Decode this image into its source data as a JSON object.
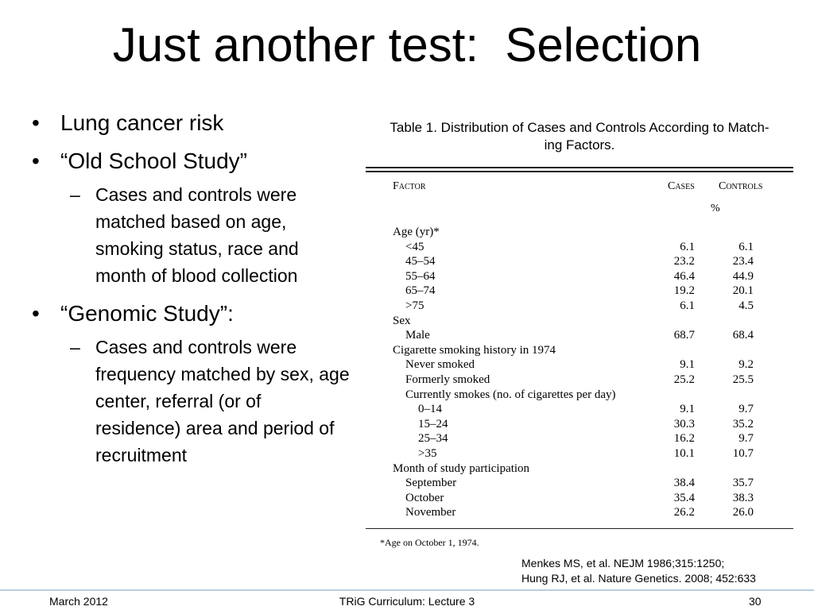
{
  "slide": {
    "title": "Just another test:  Selection",
    "bullets": [
      {
        "text": "Lung cancer risk",
        "subs": []
      },
      {
        "text": "“Old School Study”",
        "subs": [
          "Cases and controls were matched based on age, smoking status, race and month of blood collection"
        ]
      },
      {
        "text": "“Genomic Study”:",
        "subs": [
          "Cases and controls were frequency matched by sex, age center, referral (or of residence) area and period of recruitment"
        ]
      }
    ],
    "bullet_glyph": "•",
    "dash_glyph": "–",
    "citation": {
      "line1": "Menkes MS, et al. NEJM 1986;315:1250;",
      "line2": "Hung RJ, et al. Nature Genetics. 2008; 452:633"
    },
    "footer": {
      "left": "March 2012",
      "center": "TRiG Curriculum: Lecture 3",
      "right": "30"
    }
  },
  "table": {
    "caption_line1": "Table 1. Distribution of Cases and Controls According to Match-",
    "caption_line2": "ing Factors.",
    "headers": {
      "factor": "Factor",
      "cases": "Cases",
      "controls": "Controls"
    },
    "unit": "%",
    "rows": [
      {
        "label": "Age (yr)*",
        "indent": 0,
        "cases": "",
        "controls": ""
      },
      {
        "label": "<45",
        "indent": 1,
        "cases": "6.1",
        "controls": "6.1"
      },
      {
        "label": "45–54",
        "indent": 1,
        "cases": "23.2",
        "controls": "23.4"
      },
      {
        "label": "55–64",
        "indent": 1,
        "cases": "46.4",
        "controls": "44.9"
      },
      {
        "label": "65–74",
        "indent": 1,
        "cases": "19.2",
        "controls": "20.1"
      },
      {
        "label": ">75",
        "indent": 1,
        "cases": "6.1",
        "controls": "4.5"
      },
      {
        "label": "Sex",
        "indent": 0,
        "cases": "",
        "controls": ""
      },
      {
        "label": "Male",
        "indent": 1,
        "cases": "68.7",
        "controls": "68.4"
      },
      {
        "label": "Cigarette smoking history in 1974",
        "indent": 0,
        "cases": "",
        "controls": ""
      },
      {
        "label": "Never smoked",
        "indent": 1,
        "cases": "9.1",
        "controls": "9.2"
      },
      {
        "label": "Formerly smoked",
        "indent": 1,
        "cases": "25.2",
        "controls": "25.5"
      },
      {
        "label": "Currently smokes (no. of cigarettes per day)",
        "indent": 1,
        "cases": "",
        "controls": ""
      },
      {
        "label": "0–14",
        "indent": 2,
        "cases": "9.1",
        "controls": "9.7"
      },
      {
        "label": "15–24",
        "indent": 2,
        "cases": "30.3",
        "controls": "35.2"
      },
      {
        "label": "25–34",
        "indent": 2,
        "cases": "16.2",
        "controls": "9.7"
      },
      {
        "label": ">35",
        "indent": 2,
        "cases": "10.1",
        "controls": "10.7"
      },
      {
        "label": "Month of study participation",
        "indent": 0,
        "cases": "",
        "controls": ""
      },
      {
        "label": "September",
        "indent": 1,
        "cases": "38.4",
        "controls": "35.7"
      },
      {
        "label": "October",
        "indent": 1,
        "cases": "35.4",
        "controls": "38.3"
      },
      {
        "label": "November",
        "indent": 1,
        "cases": "26.2",
        "controls": "26.0"
      }
    ],
    "footnote": "*Age on October 1, 1974."
  }
}
